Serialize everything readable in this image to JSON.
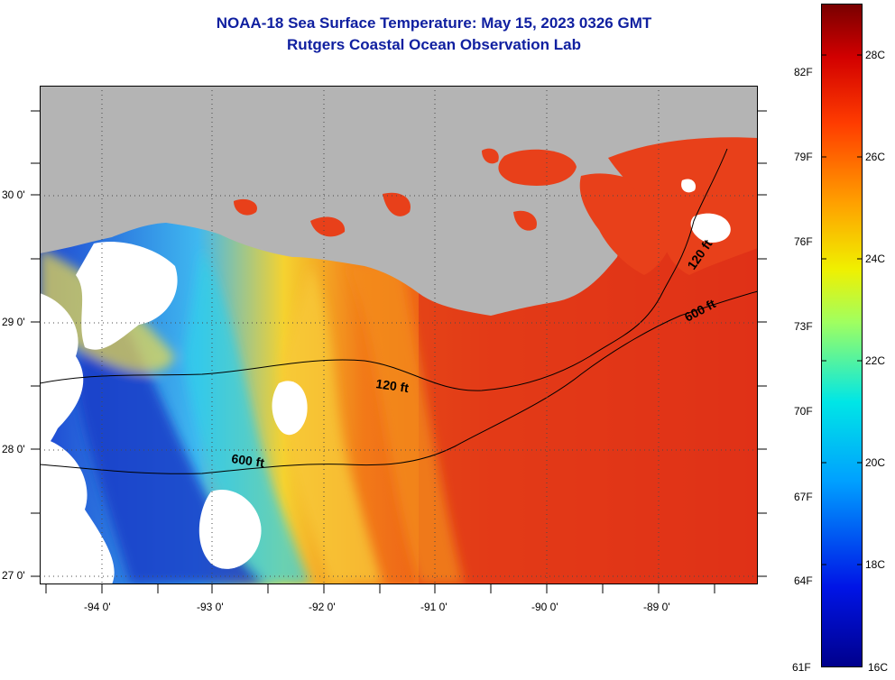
{
  "header": {
    "title": "NOAA-18 Sea Surface Temperature:  May 15, 2023 0326 GMT",
    "subtitle": "Rutgers Coastal Ocean Observation Lab"
  },
  "map": {
    "lat_labels": [
      "30 0'",
      "29 0'",
      "28 0'",
      "27 0'"
    ],
    "lon_labels": [
      "-94 0'",
      "-93 0'",
      "-92 0'",
      "-91 0'",
      "-90 0'",
      "-89 0'"
    ],
    "contours": {
      "shallow": "120 ft",
      "deep": "600 ft"
    },
    "colors": {
      "land": "#b4b4b4",
      "cloud": "#ffffff",
      "warm": "#e8301a",
      "cold": "#1428b4"
    }
  },
  "colorbar": {
    "fahrenheit": [
      "82F",
      "79F",
      "76F",
      "73F",
      "70F",
      "67F",
      "64F",
      "61F"
    ],
    "celsius": [
      "28C",
      "26C",
      "24C",
      "22C",
      "20C",
      "18C",
      "16C"
    ],
    "min_c": 16,
    "max_c": 29
  }
}
